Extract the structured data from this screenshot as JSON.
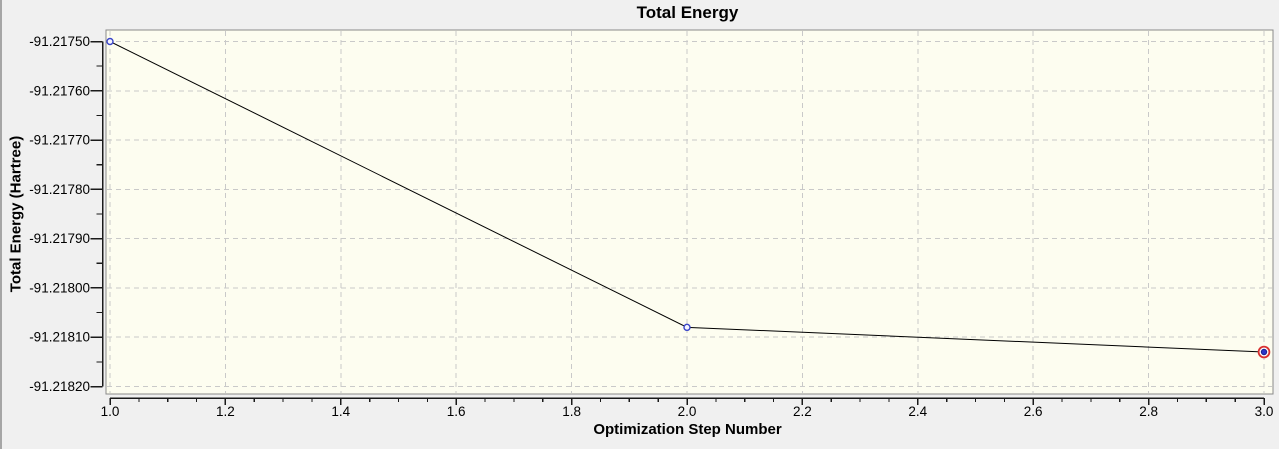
{
  "chart_data": {
    "type": "line",
    "title": "Total Energy",
    "xlabel": "Optimization Step Number",
    "ylabel": "Total Energy (Hartree)",
    "series": [
      {
        "name": "Total Energy",
        "x": [
          1.0,
          2.0,
          3.0
        ],
        "y": [
          -91.2175,
          -91.21808,
          -91.21813
        ]
      }
    ],
    "selected_point_index": 2,
    "xlim": [
      1.0,
      3.0
    ],
    "ylim": [
      -91.2182,
      -91.2175
    ],
    "x_ticks": {
      "values": [
        1.0,
        1.2,
        1.4,
        1.6,
        1.8,
        2.0,
        2.2,
        2.4,
        2.6,
        2.8,
        3.0
      ],
      "labels": [
        "1.0",
        "1.2",
        "1.4",
        "1.6",
        "1.8",
        "2.0",
        "2.2",
        "2.4",
        "2.6",
        "2.8",
        "3.0"
      ],
      "minor_step": 0.05
    },
    "y_ticks": {
      "values": [
        -91.2175,
        -91.2176,
        -91.2177,
        -91.2178,
        -91.2179,
        -91.218,
        -91.2181,
        -91.2182
      ],
      "labels": [
        "-91.21750",
        "-91.21760",
        "-91.21770",
        "-91.21780",
        "-91.21790",
        "-91.21800",
        "-91.21810",
        "-91.21820"
      ],
      "minor_step": 5e-05
    },
    "grid": {
      "show": true,
      "style": "dashed",
      "on": "major-ticks"
    },
    "legend_position": "none",
    "colors": {
      "outer_background": "#f0f0f0",
      "window_edge": "#a6a6a6",
      "plot_background": "#fdfdf0",
      "plot_border": "#8a8a8a",
      "grid": "#c9c9c9",
      "axis": "#1a1a1a",
      "line": "#000000",
      "marker_stroke": "#3a45c8",
      "marker_fill": "#f4f4ff",
      "selected_ring": "#d93030",
      "selected_fill": "#2b35c8",
      "selected_core_stroke": "#1b2290",
      "text": "#000000"
    }
  }
}
